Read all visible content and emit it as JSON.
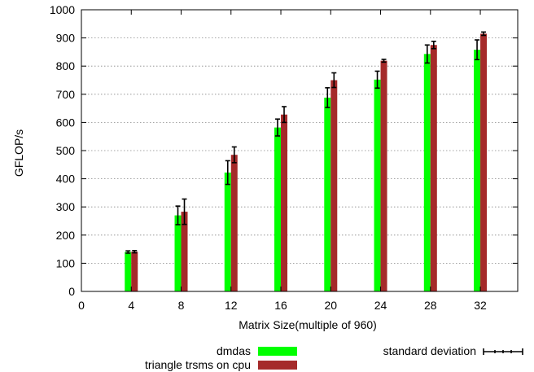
{
  "chart_data": {
    "type": "bar",
    "xlabel": "Matrix Size(multiple of 960)",
    "ylabel": "GFLOP/s",
    "xlim": [
      0,
      35
    ],
    "ylim": [
      0,
      1000
    ],
    "xticks": [
      0,
      4,
      8,
      12,
      16,
      20,
      24,
      28,
      32
    ],
    "yticks": [
      0,
      100,
      200,
      300,
      400,
      500,
      600,
      700,
      800,
      900,
      1000
    ],
    "grid": "horizontal-dotted",
    "legend_position": "bottom",
    "x": [
      4,
      8,
      12,
      16,
      20,
      24,
      28,
      32
    ],
    "series": [
      {
        "name": "dmdas",
        "color": "#00ff00",
        "values": [
          140,
          270,
          422,
          582,
          688,
          752,
          843,
          858
        ],
        "stddev": [
          4,
          33,
          42,
          30,
          35,
          30,
          32,
          35
        ]
      },
      {
        "name": "triangle trsms on cpu",
        "color": "#a52a2a",
        "values": [
          141,
          283,
          485,
          628,
          750,
          819,
          875,
          915
        ],
        "stddev": [
          4,
          45,
          28,
          28,
          26,
          5,
          13,
          6
        ]
      }
    ],
    "error_legend": "standard deviation"
  }
}
